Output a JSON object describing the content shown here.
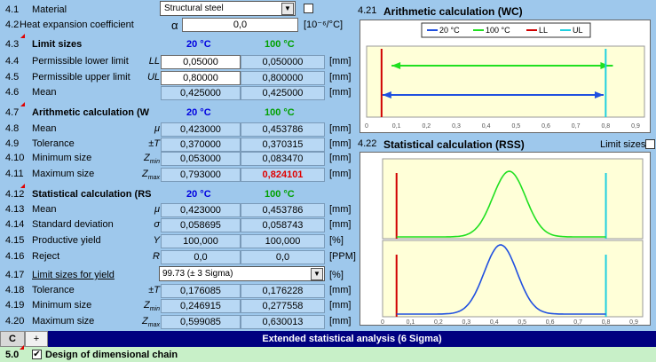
{
  "material": {
    "num": "4.1",
    "label": "Material",
    "value": "Structural steel"
  },
  "heat": {
    "num": "4.2",
    "label": "Heat expansion coefficient",
    "symbol": "α",
    "value": "0,0",
    "unit": "[10⁻⁶/°C]"
  },
  "limits": {
    "num": "4.3",
    "title": "Limit sizes",
    "t1": "20 °C",
    "t2": "100 °C",
    "rows": [
      {
        "num": "4.4",
        "label": "Permissible lower limit",
        "sym": "LL",
        "v1": "0,05000",
        "v2": "0,050000",
        "unit": "[mm]"
      },
      {
        "num": "4.5",
        "label": "Permissible upper limit",
        "sym": "UL",
        "v1": "0,80000",
        "v2": "0,800000",
        "unit": "[mm]"
      },
      {
        "num": "4.6",
        "label": "Mean",
        "sym": "",
        "v1": "0,425000",
        "v2": "0,425000",
        "unit": "[mm]"
      }
    ]
  },
  "arith": {
    "num": "4.7",
    "title": "Arithmetic calculation (W",
    "t1": "20 °C",
    "t2": "100 °C",
    "rows": [
      {
        "num": "4.8",
        "label": "Mean",
        "sym": "μ",
        "v1": "0,423000",
        "v2": "0,453786",
        "unit": "[mm]"
      },
      {
        "num": "4.9",
        "label": "Tolerance",
        "sym": "±T",
        "v1": "0,370000",
        "v2": "0,370315",
        "unit": "[mm]"
      },
      {
        "num": "4.10",
        "label": "Minimum size",
        "sym": "Zmin",
        "v1": "0,053000",
        "v2": "0,083470",
        "unit": "[mm]"
      },
      {
        "num": "4.11",
        "label": "Maximum size",
        "sym": "Zmax",
        "v1": "0,793000",
        "v2": "0,824101",
        "unit": "[mm]"
      }
    ]
  },
  "stat": {
    "num": "4.12",
    "title": "Statistical calculation (RS",
    "t1": "20 °C",
    "t2": "100 °C",
    "rows": [
      {
        "num": "4.13",
        "label": "Mean",
        "sym": "μ",
        "v1": "0,423000",
        "v2": "0,453786",
        "unit": "[mm]"
      },
      {
        "num": "4.14",
        "label": "Standard deviation",
        "sym": "σ",
        "v1": "0,058695",
        "v2": "0,058743",
        "unit": "[mm]"
      },
      {
        "num": "4.15",
        "label": "Productive yield",
        "sym": "Y",
        "v1": "100,000",
        "v2": "100,000",
        "unit": "[%]"
      },
      {
        "num": "4.16",
        "label": "Reject",
        "sym": "R",
        "v1": "0,0",
        "v2": "0,0",
        "unit": "[PPM]"
      }
    ],
    "yield_num": "4.17",
    "yield_label": "Limit sizes for yield",
    "yield_value": "99.73  (± 3 Sigma)",
    "yield_unit": "[%]",
    "rows2": [
      {
        "num": "4.18",
        "label": "Tolerance",
        "sym": "±T",
        "v1": "0,176085",
        "v2": "0,176228",
        "unit": "[mm]"
      },
      {
        "num": "4.19",
        "label": "Minimum size",
        "sym": "Zmin",
        "v1": "0,246915",
        "v2": "0,277558",
        "unit": "[mm]"
      },
      {
        "num": "4.20",
        "label": "Maximum size",
        "sym": "Zmax",
        "v1": "0,599085",
        "v2": "0,630013",
        "unit": "[mm]"
      }
    ]
  },
  "chart1": {
    "num": "4.21",
    "title": "Arithmetic calculation (WC)",
    "legend": [
      "20 °C",
      "100 °C",
      "LL",
      "UL"
    ]
  },
  "chart2": {
    "num": "4.22",
    "title": "Statistical calculation (RSS)",
    "limit_label": "Limit sizes"
  },
  "ticks": [
    "0",
    "0,1",
    "0,2",
    "0,3",
    "0,4",
    "0,5",
    "0,6",
    "0,7",
    "0,8",
    "0,9"
  ],
  "tabs": {
    "tab1": "C",
    "tab2": "+"
  },
  "footer_bar": "Extended statistical analysis (6 Sigma)",
  "bottom": {
    "num": "5.0",
    "label": "Design of dimensional chain"
  },
  "colors": {
    "c20": "#2050e0",
    "c100": "#20e020",
    "ll": "#d00000",
    "ul": "#20d0e0"
  },
  "chart_data": [
    {
      "type": "line",
      "title": "Arithmetic calculation (WC)",
      "xlim": [
        0,
        0.9
      ],
      "series": [
        {
          "name": "20 °C",
          "x": [
            0.053,
            0.793
          ]
        },
        {
          "name": "100 °C",
          "x": [
            0.08347,
            0.824101
          ]
        },
        {
          "name": "LL",
          "x": [
            0.05,
            0.05
          ]
        },
        {
          "name": "UL",
          "x": [
            0.8,
            0.8
          ]
        }
      ]
    },
    {
      "type": "line",
      "title": "Statistical calculation (RSS)",
      "xlim": [
        0,
        0.9
      ],
      "series": [
        {
          "name": "20 °C",
          "mean": 0.423,
          "sd": 0.058695
        },
        {
          "name": "100 °C",
          "mean": 0.453786,
          "sd": 0.058743
        }
      ]
    }
  ]
}
